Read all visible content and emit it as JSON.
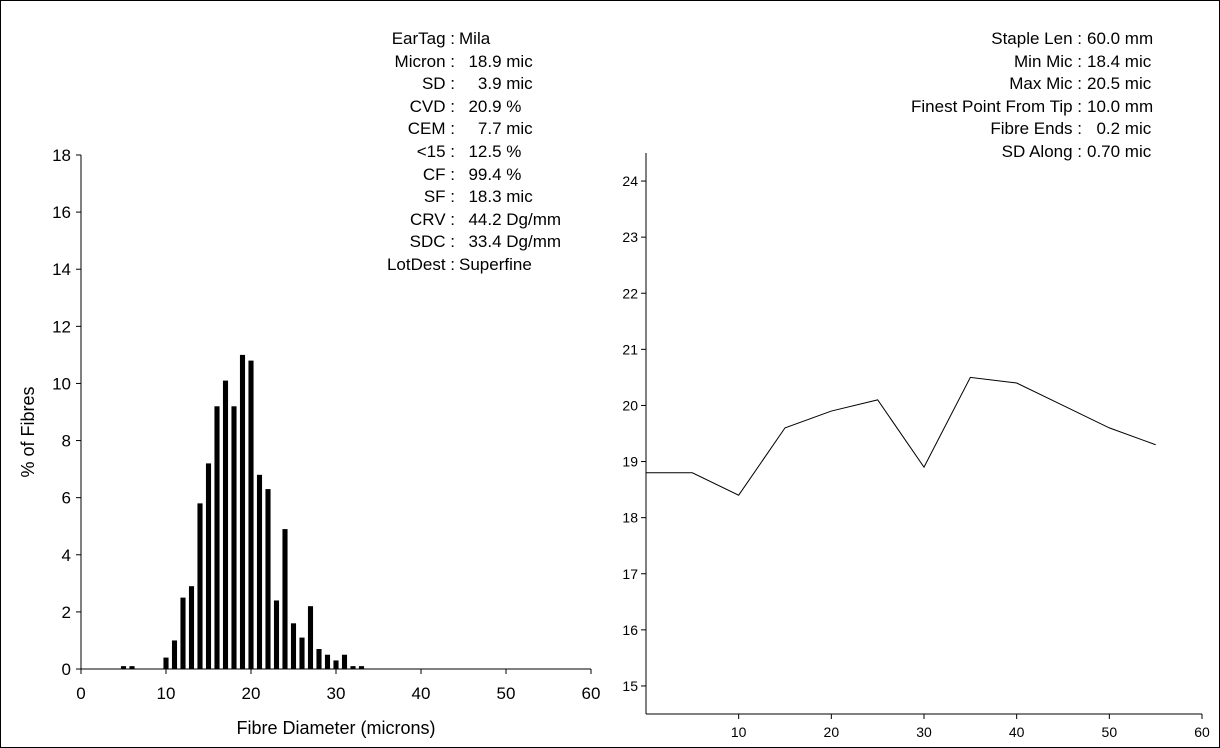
{
  "summary_left": [
    {
      "label": "EarTag :",
      "value": "Mila"
    },
    {
      "label": "Micron :",
      "value": "  18.9 mic"
    },
    {
      "label": "SD :",
      "value": "    3.9 mic"
    },
    {
      "label": "CVD :",
      "value": "  20.9 %"
    },
    {
      "label": "CEM :",
      "value": "    7.7 mic"
    },
    {
      "label": "<15 :",
      "value": "  12.5 %"
    },
    {
      "label": "CF :",
      "value": "  99.4 %"
    },
    {
      "label": "SF :",
      "value": "  18.3 mic"
    },
    {
      "label": "CRV :",
      "value": "  44.2 Dg/mm"
    },
    {
      "label": "SDC :",
      "value": "  33.4 Dg/mm"
    },
    {
      "label": "LotDest :",
      "value": "Superfine"
    }
  ],
  "summary_right": [
    {
      "label": "Staple Len :",
      "value": "60.0 mm"
    },
    {
      "label": "Min Mic :",
      "value": "18.4 mic"
    },
    {
      "label": "Max Mic :",
      "value": "20.5 mic"
    },
    {
      "label": "Finest Point From Tip :",
      "value": "10.0 mm"
    },
    {
      "label": "Fibre Ends :",
      "value": "  0.2 mic"
    },
    {
      "label": "SD Along :",
      "value": "0.70 mic"
    }
  ],
  "chart_data": [
    {
      "type": "bar",
      "xlabel": "Fibre Diameter (microns)",
      "ylabel": "% of Fibres",
      "xlim": [
        0,
        60
      ],
      "ylim": [
        0,
        18
      ],
      "xticks": [
        "0",
        "10",
        "20",
        "30",
        "40",
        "50",
        "60"
      ],
      "yticks": [
        "0",
        "2",
        "4",
        "6",
        "8",
        "10",
        "12",
        "14",
        "16",
        "18"
      ],
      "x": [
        5,
        6,
        10,
        11,
        12,
        13,
        14,
        15,
        16,
        17,
        18,
        19,
        20,
        21,
        22,
        23,
        24,
        25,
        26,
        27,
        28,
        29,
        30,
        31,
        32,
        33
      ],
      "values": [
        0.1,
        0.1,
        0.4,
        1.0,
        2.5,
        2.9,
        5.8,
        7.2,
        9.2,
        10.1,
        9.2,
        11.0,
        10.8,
        6.8,
        6.3,
        2.4,
        4.9,
        1.6,
        1.1,
        2.2,
        0.7,
        0.5,
        0.3,
        0.5,
        0.1,
        0.1
      ],
      "color": "#000000"
    },
    {
      "type": "line",
      "xlim": [
        0,
        60
      ],
      "ylim": [
        14.5,
        24.5
      ],
      "xticks": [
        "10",
        "20",
        "30",
        "40",
        "50",
        "60"
      ],
      "yticks": [
        "15",
        "16",
        "17",
        "18",
        "19",
        "20",
        "21",
        "22",
        "23",
        "24"
      ],
      "x": [
        0,
        5,
        10,
        15,
        20,
        25,
        30,
        35,
        40,
        45,
        50,
        55
      ],
      "values": [
        18.8,
        18.8,
        18.4,
        19.6,
        19.9,
        20.1,
        18.9,
        20.5,
        20.4,
        20.0,
        19.6,
        19.3
      ],
      "color": "#000000"
    }
  ]
}
